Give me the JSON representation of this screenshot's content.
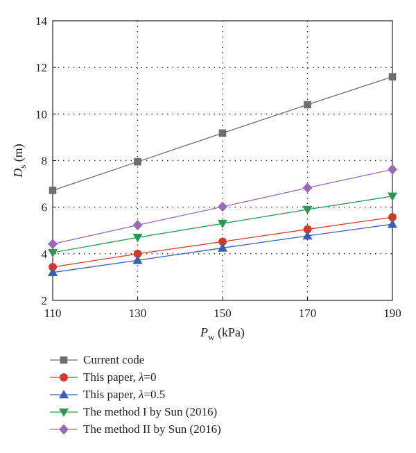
{
  "chart_data": {
    "type": "line",
    "xlabel": {
      "main": "P",
      "sub": "w",
      "unit": " (kPa)"
    },
    "ylabel": {
      "main": "D",
      "sub": "s",
      "unit": " (m)"
    },
    "x": [
      110,
      130,
      150,
      170,
      190
    ],
    "xlim": [
      110,
      190
    ],
    "ylim": [
      2,
      14
    ],
    "xticks": [
      "110",
      "130",
      "150",
      "170",
      "190"
    ],
    "yticks": [
      "2",
      "4",
      "6",
      "8",
      "10",
      "12",
      "14"
    ],
    "grid": true,
    "legend_position": "below",
    "series": [
      {
        "name": "Current code",
        "name_prefix": "Current code",
        "name_italic": "",
        "name_suffix": "",
        "color": "#6d6d6d",
        "marker": "square",
        "values": [
          6.72,
          7.95,
          9.18,
          10.4,
          11.6
        ]
      },
      {
        "name": "This paper, λ=0",
        "name_prefix": "This paper, ",
        "name_italic": "λ",
        "name_suffix": "=0",
        "color": "#d03a2a",
        "marker": "circle",
        "values": [
          3.43,
          4.0,
          4.52,
          5.05,
          5.57
        ]
      },
      {
        "name": "This paper, λ=0.5",
        "name_prefix": "This paper, ",
        "name_italic": "λ",
        "name_suffix": "=0.5",
        "color": "#3a5fb0",
        "marker": "triangle-up",
        "values": [
          3.2,
          3.72,
          4.25,
          4.77,
          5.27
        ]
      },
      {
        "name": "The method I by Sun (2016)",
        "name_prefix": "The method I by Sun (2016)",
        "name_italic": "",
        "name_suffix": "",
        "color": "#2a9a52",
        "marker": "triangle-down",
        "values": [
          4.05,
          4.7,
          5.3,
          5.9,
          6.47
        ]
      },
      {
        "name": "The method II by Sun (2016)",
        "name_prefix": "The method II by Sun (2016)",
        "name_italic": "",
        "name_suffix": "",
        "color": "#9a6ab8",
        "marker": "diamond",
        "values": [
          4.42,
          5.23,
          6.02,
          6.83,
          7.62
        ]
      }
    ]
  }
}
